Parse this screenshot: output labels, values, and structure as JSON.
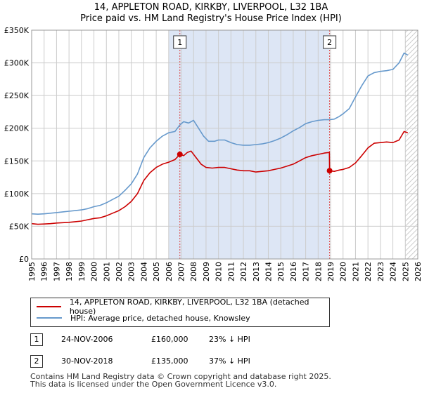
{
  "title": "14, APPLETON ROAD, KIRKBY, LIVERPOOL, L32 1BA",
  "subtitle": "Price paid vs. HM Land Registry's House Price Index (HPI)",
  "colors": {
    "property": "#cc0000",
    "hpi": "#6699cc",
    "shade": "#dde6f5",
    "grid": "#cccccc",
    "marker_line": "#dd4444"
  },
  "chart_data": {
    "type": "line",
    "x_label": "",
    "y_label": "",
    "xlim": [
      1995,
      2026
    ],
    "ylim": [
      0,
      350000
    ],
    "grid": true,
    "x_ticks": [
      "1995",
      "1996",
      "1997",
      "1998",
      "1999",
      "2000",
      "2001",
      "2002",
      "2003",
      "2004",
      "2005",
      "2006",
      "2007",
      "2008",
      "2009",
      "2010",
      "2011",
      "2012",
      "2013",
      "2014",
      "2015",
      "2016",
      "2017",
      "2018",
      "2019",
      "2020",
      "2021",
      "2022",
      "2023",
      "2024",
      "2025",
      "2026"
    ],
    "y_ticks": [
      {
        "value": 0,
        "label": "£0"
      },
      {
        "value": 50000,
        "label": "£50K"
      },
      {
        "value": 100000,
        "label": "£100K"
      },
      {
        "value": 150000,
        "label": "£150K"
      },
      {
        "value": 200000,
        "label": "£200K"
      },
      {
        "value": 250000,
        "label": "£250K"
      },
      {
        "value": 300000,
        "label": "£300K"
      },
      {
        "value": 350000,
        "label": "£350K"
      }
    ],
    "shaded_period": [
      2006.0,
      2018.92
    ],
    "hatched_from": 2025.0,
    "series": [
      {
        "name": "14, APPLETON ROAD, KIRKBY, LIVERPOOL, L32 1BA (detached house)",
        "color": "#cc0000",
        "x": [
          1995.0,
          1995.5,
          1996.0,
          1996.5,
          1997.0,
          1997.5,
          1998.0,
          1998.5,
          1999.0,
          1999.5,
          2000.0,
          2000.5,
          2001.0,
          2001.5,
          2002.0,
          2002.5,
          2003.0,
          2003.5,
          2004.0,
          2004.5,
          2005.0,
          2005.5,
          2006.0,
          2006.5,
          2006.9,
          2007.2,
          2007.5,
          2007.8,
          2008.2,
          2008.6,
          2009.0,
          2009.5,
          2010.0,
          2010.5,
          2011.0,
          2011.5,
          2012.0,
          2012.5,
          2013.0,
          2013.5,
          2014.0,
          2014.5,
          2015.0,
          2015.5,
          2016.0,
          2016.5,
          2017.0,
          2017.5,
          2018.0,
          2018.5,
          2018.9,
          2018.92,
          2019.3,
          2019.7,
          2020.0,
          2020.5,
          2021.0,
          2021.5,
          2022.0,
          2022.5,
          2023.0,
          2023.5,
          2024.0,
          2024.5,
          2024.9,
          2025.2
        ],
        "y": [
          54000,
          53000,
          53500,
          54000,
          55000,
          55500,
          56000,
          57000,
          58000,
          60000,
          62000,
          63000,
          66000,
          70000,
          74000,
          80000,
          88000,
          100000,
          120000,
          132000,
          140000,
          145000,
          148000,
          152000,
          160000,
          158000,
          163000,
          165000,
          155000,
          145000,
          140000,
          139000,
          140000,
          140000,
          138000,
          136000,
          135000,
          135000,
          133000,
          134000,
          135000,
          137000,
          139000,
          142000,
          145000,
          150000,
          155000,
          158000,
          160000,
          162000,
          163000,
          135000,
          134000,
          136000,
          137000,
          140000,
          147000,
          158000,
          170000,
          177000,
          178000,
          179000,
          178000,
          182000,
          195000,
          193000
        ]
      },
      {
        "name": "HPI: Average price, detached house, Knowsley",
        "color": "#6699cc",
        "x": [
          1995.0,
          1995.5,
          1996.0,
          1996.5,
          1997.0,
          1997.5,
          1998.0,
          1998.5,
          1999.0,
          1999.5,
          2000.0,
          2000.5,
          2001.0,
          2001.5,
          2002.0,
          2002.5,
          2003.0,
          2003.5,
          2004.0,
          2004.5,
          2005.0,
          2005.5,
          2006.0,
          2006.5,
          2006.9,
          2007.2,
          2007.6,
          2008.0,
          2008.4,
          2008.8,
          2009.2,
          2009.7,
          2010.0,
          2010.5,
          2011.0,
          2011.5,
          2012.0,
          2012.5,
          2013.0,
          2013.5,
          2014.0,
          2014.5,
          2015.0,
          2015.5,
          2016.0,
          2016.5,
          2017.0,
          2017.5,
          2018.0,
          2018.5,
          2018.92,
          2019.3,
          2019.7,
          2020.0,
          2020.5,
          2021.0,
          2021.5,
          2022.0,
          2022.5,
          2023.0,
          2023.5,
          2024.0,
          2024.5,
          2024.9,
          2025.2
        ],
        "y": [
          69000,
          68500,
          69000,
          70000,
          71000,
          72000,
          73000,
          74000,
          75000,
          77000,
          80000,
          82000,
          86000,
          91000,
          96000,
          105000,
          115000,
          130000,
          155000,
          170000,
          180000,
          188000,
          193000,
          195000,
          205000,
          210000,
          208000,
          212000,
          200000,
          188000,
          180000,
          180000,
          182000,
          182000,
          178000,
          175000,
          174000,
          174000,
          175000,
          176000,
          178000,
          181000,
          185000,
          190000,
          196000,
          201000,
          207000,
          210000,
          212000,
          213000,
          213000,
          214000,
          218000,
          222000,
          230000,
          248000,
          265000,
          280000,
          285000,
          287000,
          288000,
          290000,
          300000,
          315000,
          312000
        ]
      }
    ],
    "transactions": [
      {
        "id": "1",
        "x": 2006.9,
        "y": 160000
      },
      {
        "id": "2",
        "x": 2018.92,
        "y": 135000
      }
    ]
  },
  "legend": {
    "property_label": "14, APPLETON ROAD, KIRKBY, LIVERPOOL, L32 1BA (detached house)",
    "hpi_label": "HPI: Average price, detached house, Knowsley"
  },
  "transactions_table": [
    {
      "id": "1",
      "date": "24-NOV-2006",
      "price": "£160,000",
      "hpi": "23% ↓ HPI"
    },
    {
      "id": "2",
      "date": "30-NOV-2018",
      "price": "£135,000",
      "hpi": "37% ↓ HPI"
    }
  ],
  "footer": {
    "line1": "Contains HM Land Registry data © Crown copyright and database right 2025.",
    "line2": "This data is licensed under the Open Government Licence v3.0."
  }
}
